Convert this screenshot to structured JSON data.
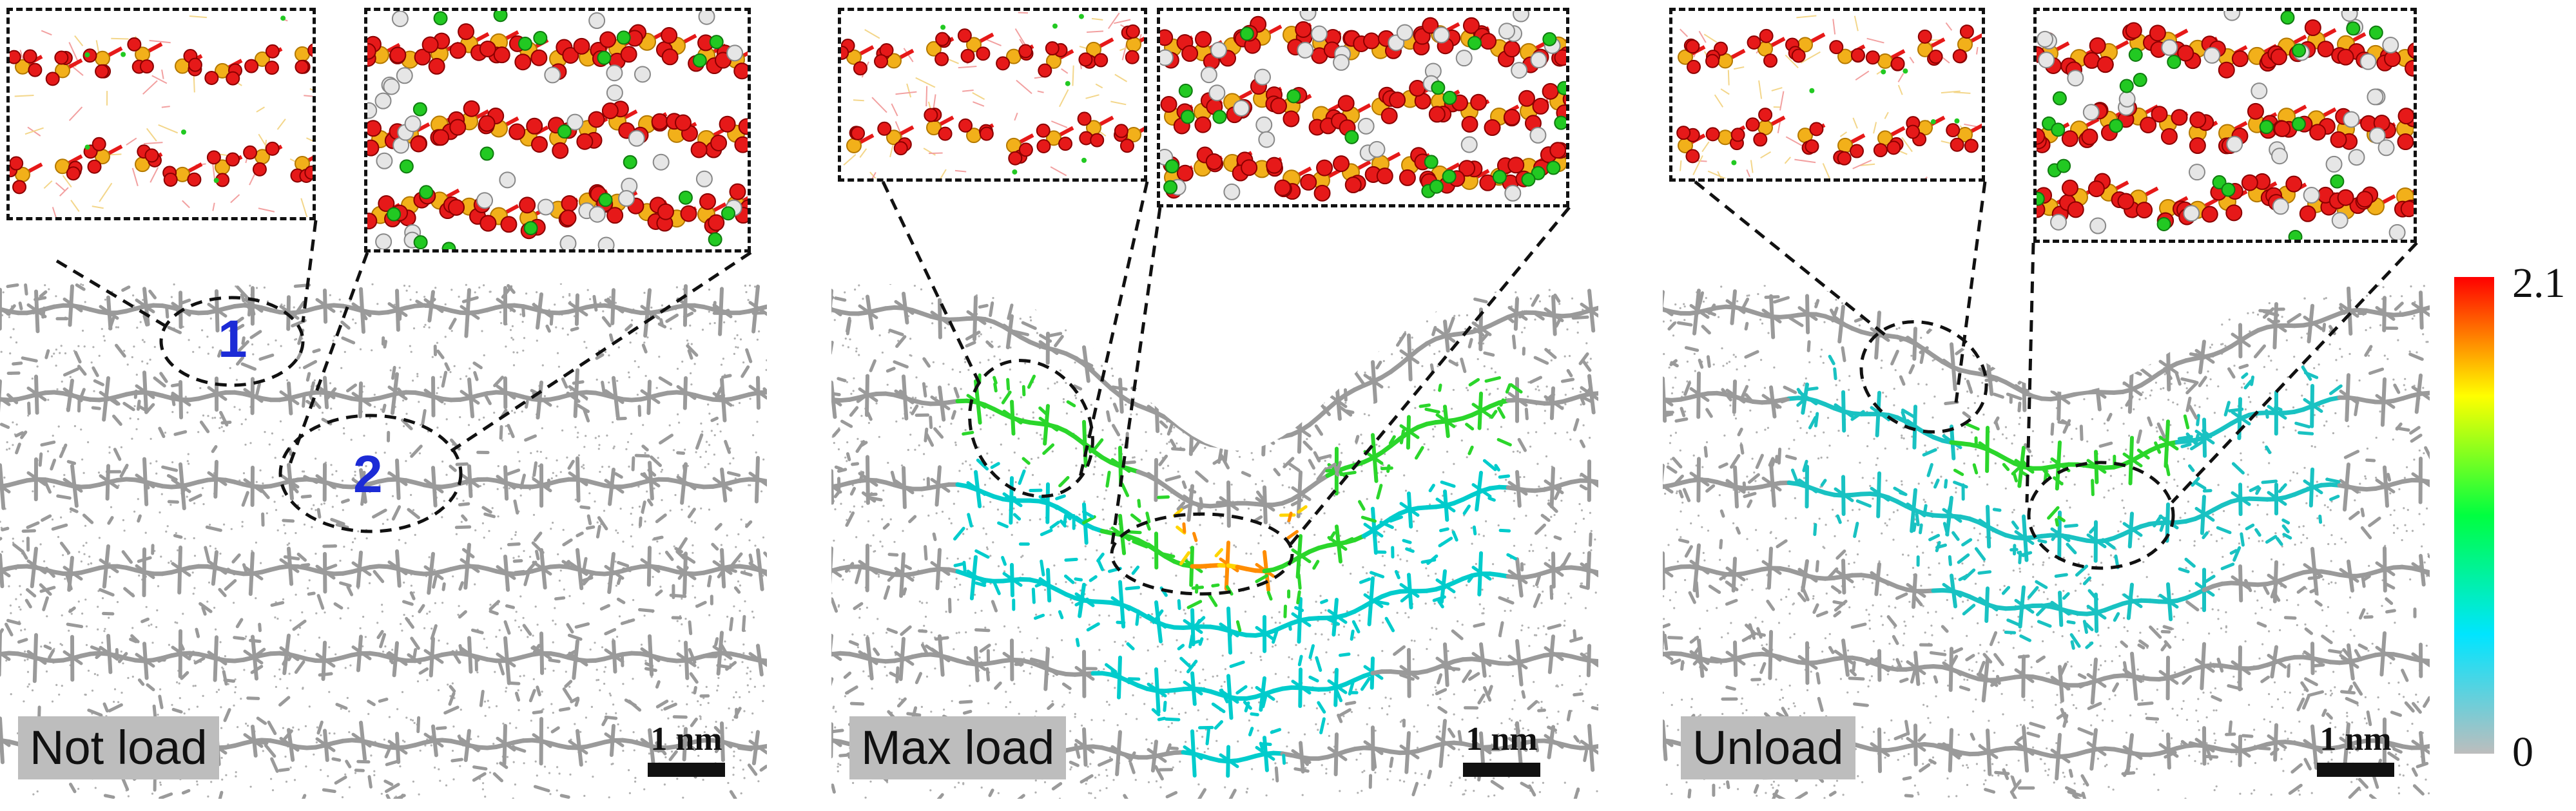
{
  "panels": [
    {
      "label": "Not load",
      "scale_bar": "1 nm",
      "region_labels": [
        "1",
        "2"
      ],
      "indent": 0.0,
      "color_mode": "gray"
    },
    {
      "label": "Max load",
      "scale_bar": "1 nm",
      "region_labels": [],
      "indent": 1.0,
      "color_mode": "deformed-strong"
    },
    {
      "label": "Unload",
      "scale_bar": "1 nm",
      "region_labels": [],
      "indent": 0.65,
      "color_mode": "deformed-residual"
    }
  ],
  "colorbar": {
    "max_label": "2.1",
    "min_label": "0",
    "colors": [
      "#bdbdbd",
      "#00e5ff",
      "#00ff40",
      "#ffff00",
      "#ff0000"
    ]
  },
  "atom_colors": {
    "phosphorus": "#f2b01a",
    "oxygen": "#e61919",
    "hydrogen": "#e6e6e6",
    "zinc": "#22c922",
    "bond": "#9a9a9a"
  }
}
